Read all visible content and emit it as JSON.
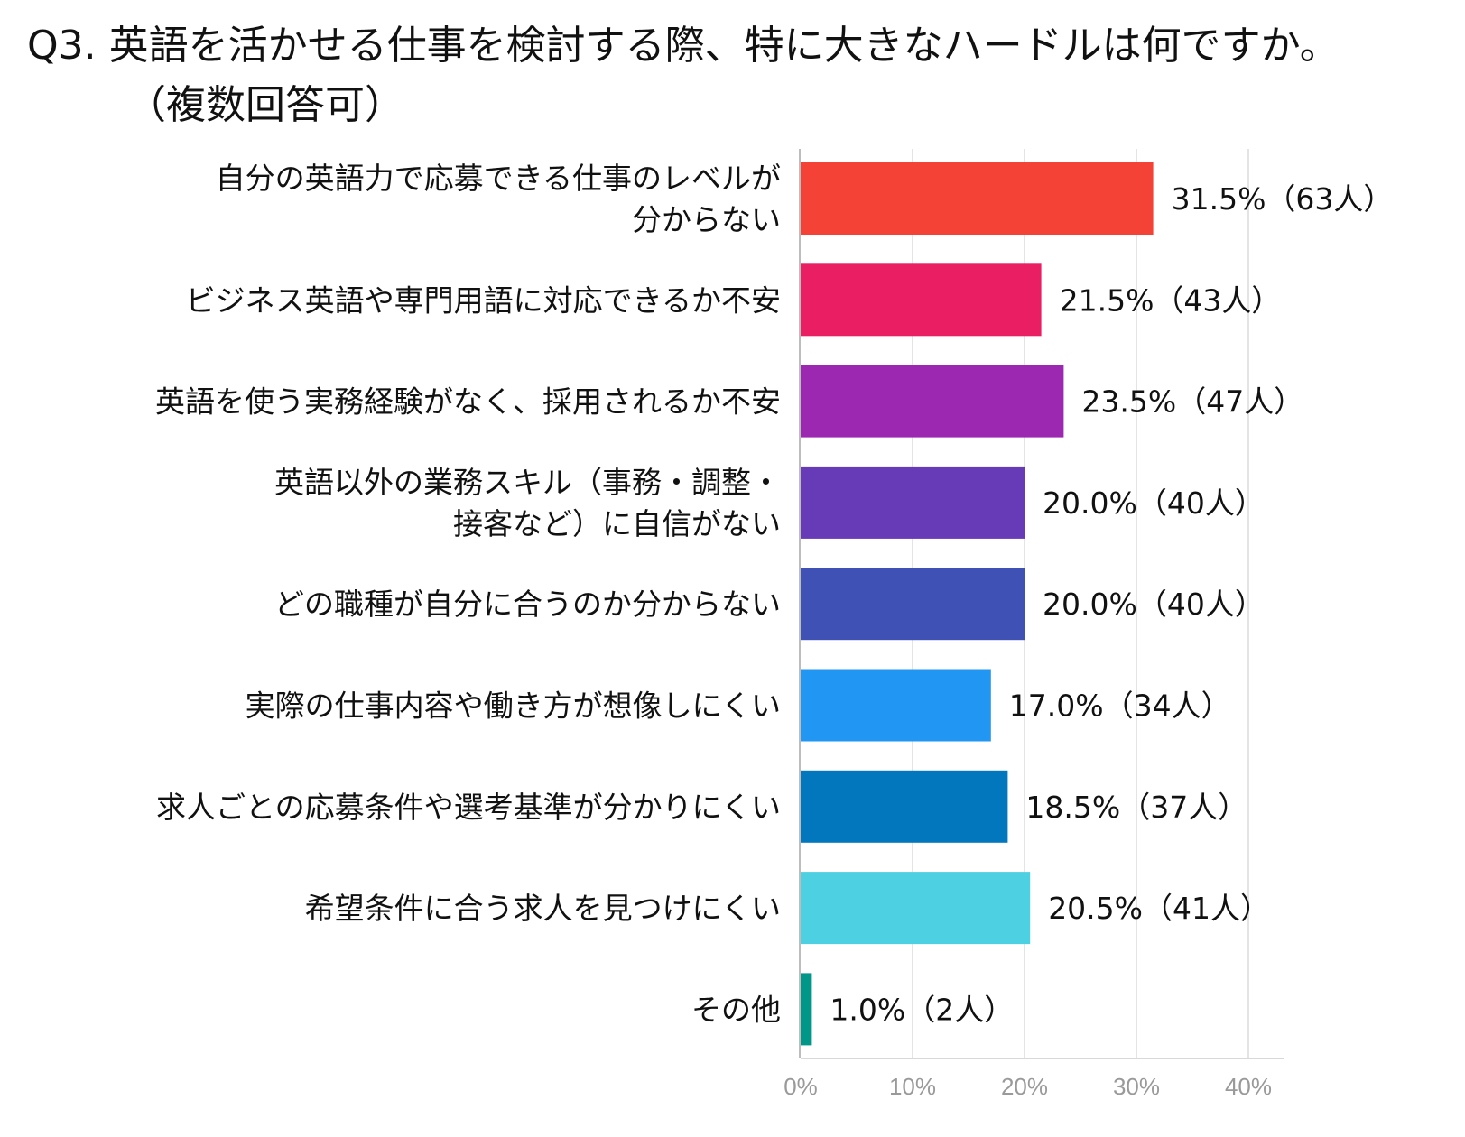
{
  "title": {
    "line1": "Q3. 英語を活かせる仕事を検討する際、特に大きなハードルは何ですか。",
    "line2": "（複数回答可）"
  },
  "chart_data": {
    "type": "bar",
    "orientation": "horizontal",
    "title": "Q3. 英語を活かせる仕事を検討する際、特に大きなハードルは何ですか。（複数回答可）",
    "xlabel": "",
    "ylabel": "",
    "xlim": [
      0,
      40
    ],
    "ticks": [
      {
        "value": 0,
        "label": "0%"
      },
      {
        "value": 10,
        "label": "10%"
      },
      {
        "value": 20,
        "label": "20%"
      },
      {
        "value": 30,
        "label": "30%"
      },
      {
        "value": 40,
        "label": "40%"
      }
    ],
    "grid": true,
    "legend": "none",
    "bars": [
      {
        "label_lines": [
          "自分の英語力で応募できる仕事のレベルが",
          "分からない"
        ],
        "value": 31.5,
        "value_label": "31.5%（63人）",
        "color": "#F44336"
      },
      {
        "label_lines": [
          "ビジネス英語や専門用語に対応できるか不安"
        ],
        "value": 21.5,
        "value_label": "21.5%（43人）",
        "color": "#E91E63"
      },
      {
        "label_lines": [
          "英語を使う実務経験がなく、採用されるか不安"
        ],
        "value": 23.5,
        "value_label": "23.5%（47人）",
        "color": "#9C27B0"
      },
      {
        "label_lines": [
          "英語以外の業務スキル（事務・調整・",
          "接客など）に自信がない"
        ],
        "value": 20.0,
        "value_label": "20.0%（40人）",
        "color": "#673AB7"
      },
      {
        "label_lines": [
          "どの職種が自分に合うのか分からない"
        ],
        "value": 20.0,
        "value_label": "20.0%（40人）",
        "color": "#3F51B5"
      },
      {
        "label_lines": [
          "実際の仕事内容や働き方が想像しにくい"
        ],
        "value": 17.0,
        "value_label": "17.0%（34人）",
        "color": "#2196F3"
      },
      {
        "label_lines": [
          "求人ごとの応募条件や選考基準が分かりにくい"
        ],
        "value": 18.5,
        "value_label": "18.5%（37人）",
        "color": "#0277BD"
      },
      {
        "label_lines": [
          "希望条件に合う求人を見つけにくい"
        ],
        "value": 20.5,
        "value_label": "20.5%（41人）",
        "color": "#4DD0E1"
      },
      {
        "label_lines": [
          "その他"
        ],
        "value": 1.0,
        "value_label": "1.0%（2人）",
        "color": "#009688"
      }
    ]
  }
}
